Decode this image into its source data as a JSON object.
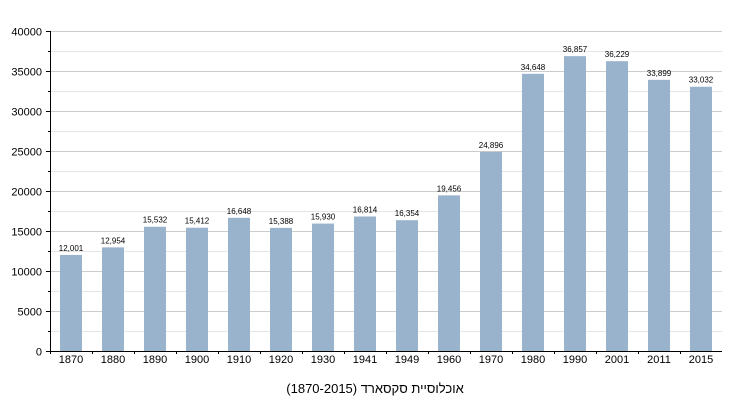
{
  "chart_data": {
    "type": "bar",
    "title": "אוכלוסיית סקסארד (1870-2015)",
    "xlabel": "",
    "ylabel": "",
    "categories": [
      "1870",
      "1880",
      "1890",
      "1900",
      "1910",
      "1920",
      "1930",
      "1941",
      "1949",
      "1960",
      "1970",
      "1980",
      "1990",
      "2001",
      "2011",
      "2015"
    ],
    "values": [
      12001,
      12954,
      15532,
      15412,
      16648,
      15388,
      15930,
      16814,
      16354,
      19456,
      24896,
      34648,
      36857,
      36229,
      33899,
      33032
    ],
    "data_labels": [
      "12,001",
      "12,954",
      "15,532",
      "15,412",
      "16,648",
      "15,388",
      "15,930",
      "16,814",
      "16,354",
      "19,456",
      "24,896",
      "34,648",
      "36,857",
      "36,229",
      "33,899",
      "33,032"
    ],
    "ylim": [
      0,
      40000
    ],
    "yticks": [
      0,
      5000,
      10000,
      15000,
      20000,
      25000,
      30000,
      35000,
      40000
    ],
    "ytick_labels": [
      "0",
      "5000",
      "10000",
      "15000",
      "20000",
      "25000",
      "30000",
      "35000",
      "40000"
    ],
    "grid": true,
    "legend": "none",
    "colors": {
      "bar": "#9ab3cd",
      "grid": "#cccccc",
      "axis": "#000000"
    }
  }
}
